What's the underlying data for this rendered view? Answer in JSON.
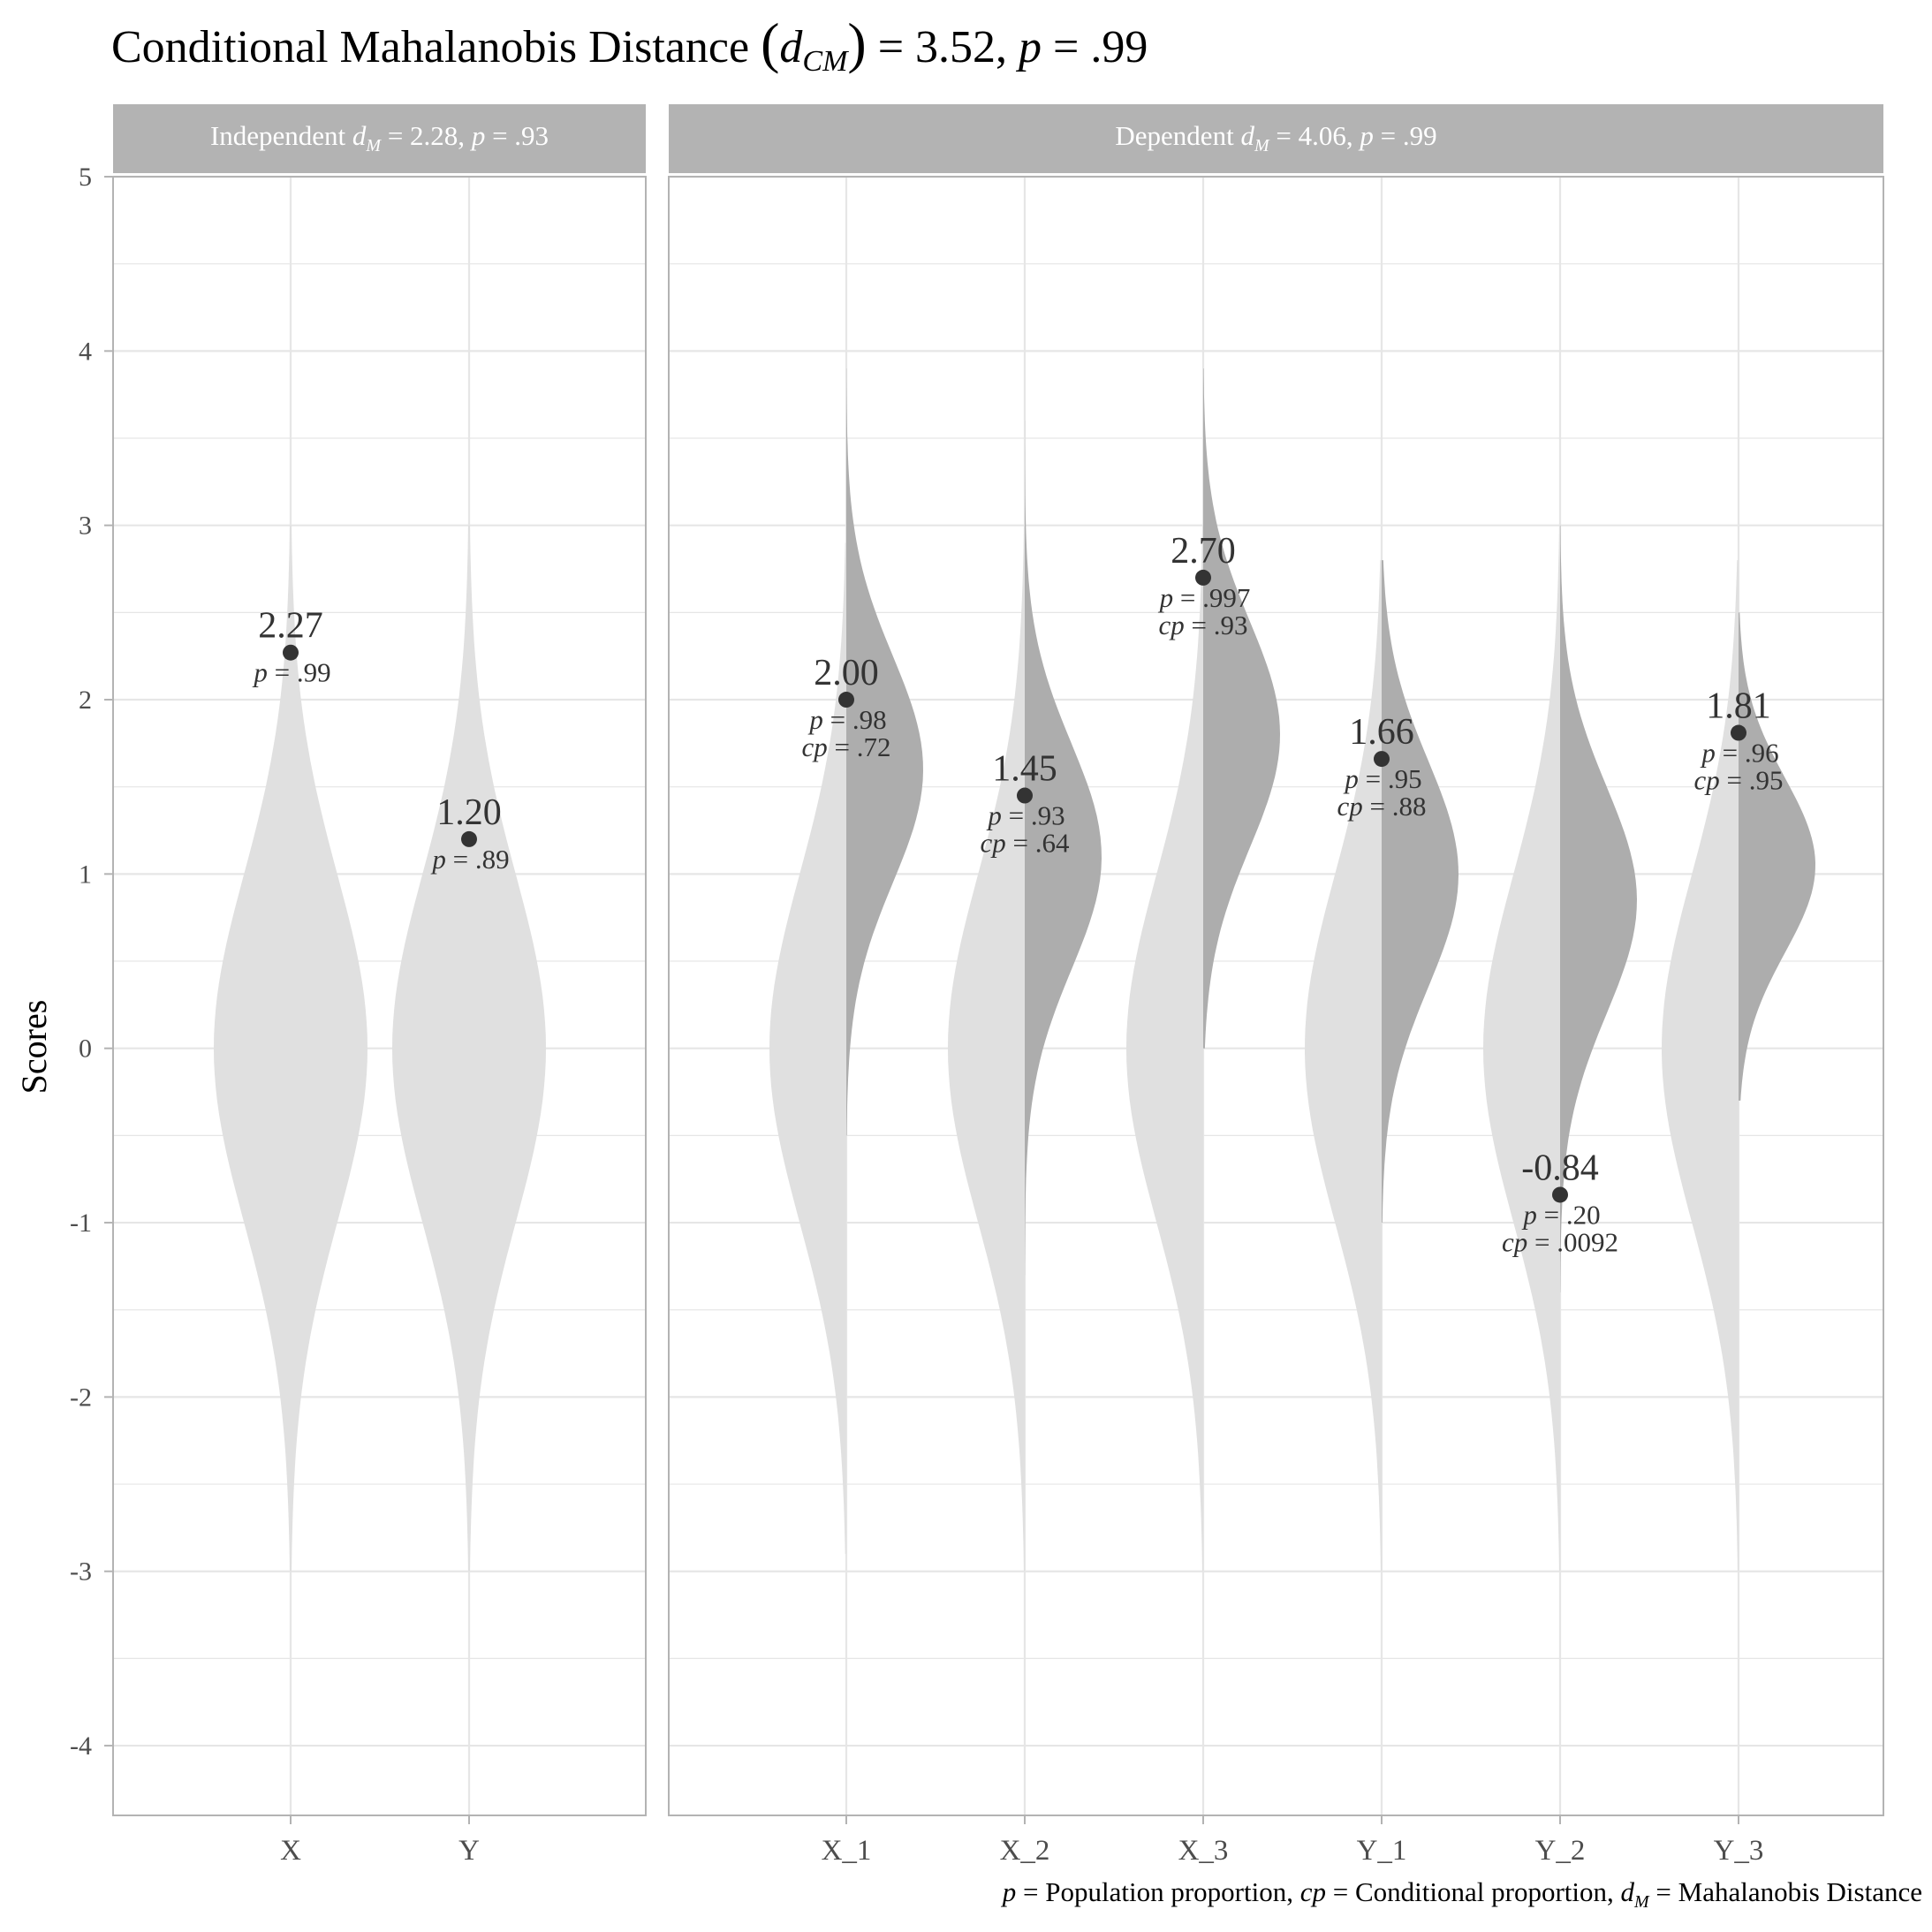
{
  "chart_data": {
    "type": "violin",
    "title": {
      "lead": "Conditional Mahalanobis Distance",
      "sym": "d",
      "sub": "CM",
      "rest": " = 3.52, ",
      "p": "p",
      "pval": " = .99"
    },
    "ylabel": "Scores",
    "ylim": [
      -4.4,
      5.0
    ],
    "yticks": [
      5,
      4,
      3,
      2,
      1,
      0,
      -1,
      -2,
      -3,
      -4
    ],
    "ytick_labels": [
      "5",
      "4",
      "3",
      "2",
      "1",
      "0",
      "-1",
      "-2",
      "-3",
      "-4"
    ],
    "grid": true,
    "colors": {
      "violin_light": "#e0e0e0",
      "violin_dark": "#adadad",
      "strip": "#b3b3b3",
      "strip_text": "#ffffff",
      "point": "#333333",
      "grid": "#e6e6e6",
      "panel_border": "#b3b3b3",
      "text": "#333333",
      "tick_text": "#4d4d4d"
    },
    "panels": [
      {
        "strip": {
          "lead": "Independent ",
          "sym": "d",
          "sub": "M",
          "rest": " = 2.28, ",
          "p": "p",
          "pval": " = .93"
        },
        "categories": [
          "X",
          "Y"
        ],
        "violins": [
          {
            "category": "X",
            "mean": 0,
            "sd": 1,
            "min": -3,
            "max": 3,
            "split": false,
            "score": "2.27",
            "score_value": 2.27,
            "p_label": "p",
            "p_text": " = .99"
          },
          {
            "category": "Y",
            "mean": 0,
            "sd": 1,
            "min": -3,
            "max": 3,
            "split": false,
            "score": "1.20",
            "score_value": 1.2,
            "p_label": "p",
            "p_text": " = .89"
          }
        ]
      },
      {
        "strip": {
          "lead": "Dependent ",
          "sym": "d",
          "sub": "M",
          "rest": " = 4.06, ",
          "p": "p",
          "pval": " = .99"
        },
        "categories": [
          "X_1",
          "X_2",
          "X_3",
          "Y_1",
          "Y_2",
          "Y_3"
        ],
        "violins": [
          {
            "category": "X_1",
            "mean": 0,
            "sd": 1,
            "min": -2.9,
            "max": 2.9,
            "split": true,
            "cond_mean": 1.6,
            "cond_sd": 0.65,
            "cond_min": -0.5,
            "cond_max": 3.9,
            "score": "2.00",
            "score_value": 2.0,
            "p_label": "p",
            "p_text": " = .98",
            "cp_label": "cp",
            "cp_text": " = .72"
          },
          {
            "category": "X_2",
            "mean": 0,
            "sd": 1,
            "min": -3,
            "max": 3,
            "split": true,
            "cond_mean": 1.1,
            "cond_sd": 0.65,
            "cond_min": -1.3,
            "cond_max": 3.6,
            "score": "1.45",
            "score_value": 1.45,
            "p_label": "p",
            "p_text": " = .93",
            "cp_label": "cp",
            "cp_text": " = .64"
          },
          {
            "category": "X_3",
            "mean": 0,
            "sd": 1,
            "min": -3,
            "max": 3,
            "split": true,
            "cond_mean": 1.8,
            "cond_sd": 0.65,
            "cond_min": 0.0,
            "cond_max": 3.9,
            "score": "2.70",
            "score_value": 2.7,
            "p_label": "p",
            "p_text": " = .997",
            "cp_label": "cp",
            "cp_text": " = .93"
          },
          {
            "category": "Y_1",
            "mean": 0,
            "sd": 1,
            "min": -3,
            "max": 2.8,
            "split": true,
            "cond_mean": 1.0,
            "cond_sd": 0.65,
            "cond_min": -1.0,
            "cond_max": 2.8,
            "score": "1.66",
            "score_value": 1.66,
            "p_label": "p",
            "p_text": " = .95",
            "cp_label": "cp",
            "cp_text": " = .88"
          },
          {
            "category": "Y_2",
            "mean": 0,
            "sd": 1,
            "min": -3.0,
            "max": 3.0,
            "split": true,
            "cond_mean": 0.85,
            "cond_sd": 0.65,
            "cond_min": -1.4,
            "cond_max": 3.0,
            "score": "-0.84",
            "score_value": -0.84,
            "p_label": "p",
            "p_text": " = .20",
            "cp_label": "cp",
            "cp_text": " = .0092"
          },
          {
            "category": "Y_3",
            "mean": 0,
            "sd": 1,
            "min": -3,
            "max": 2.8,
            "split": true,
            "cond_mean": 1.05,
            "cond_sd": 0.5,
            "cond_min": -0.3,
            "cond_max": 2.5,
            "score": "1.81",
            "score_value": 1.81,
            "p_label": "p",
            "p_text": " = .96",
            "cp_label": "cp",
            "cp_text": " = .95"
          }
        ]
      }
    ],
    "caption": [
      {
        "sym": "p",
        "text": " = Population proportion, "
      },
      {
        "sym": "cp",
        "text": " = Conditional proportion, "
      },
      {
        "sym": "d",
        "sub": "M",
        "text": " = Mahalanobis Distance"
      }
    ]
  }
}
